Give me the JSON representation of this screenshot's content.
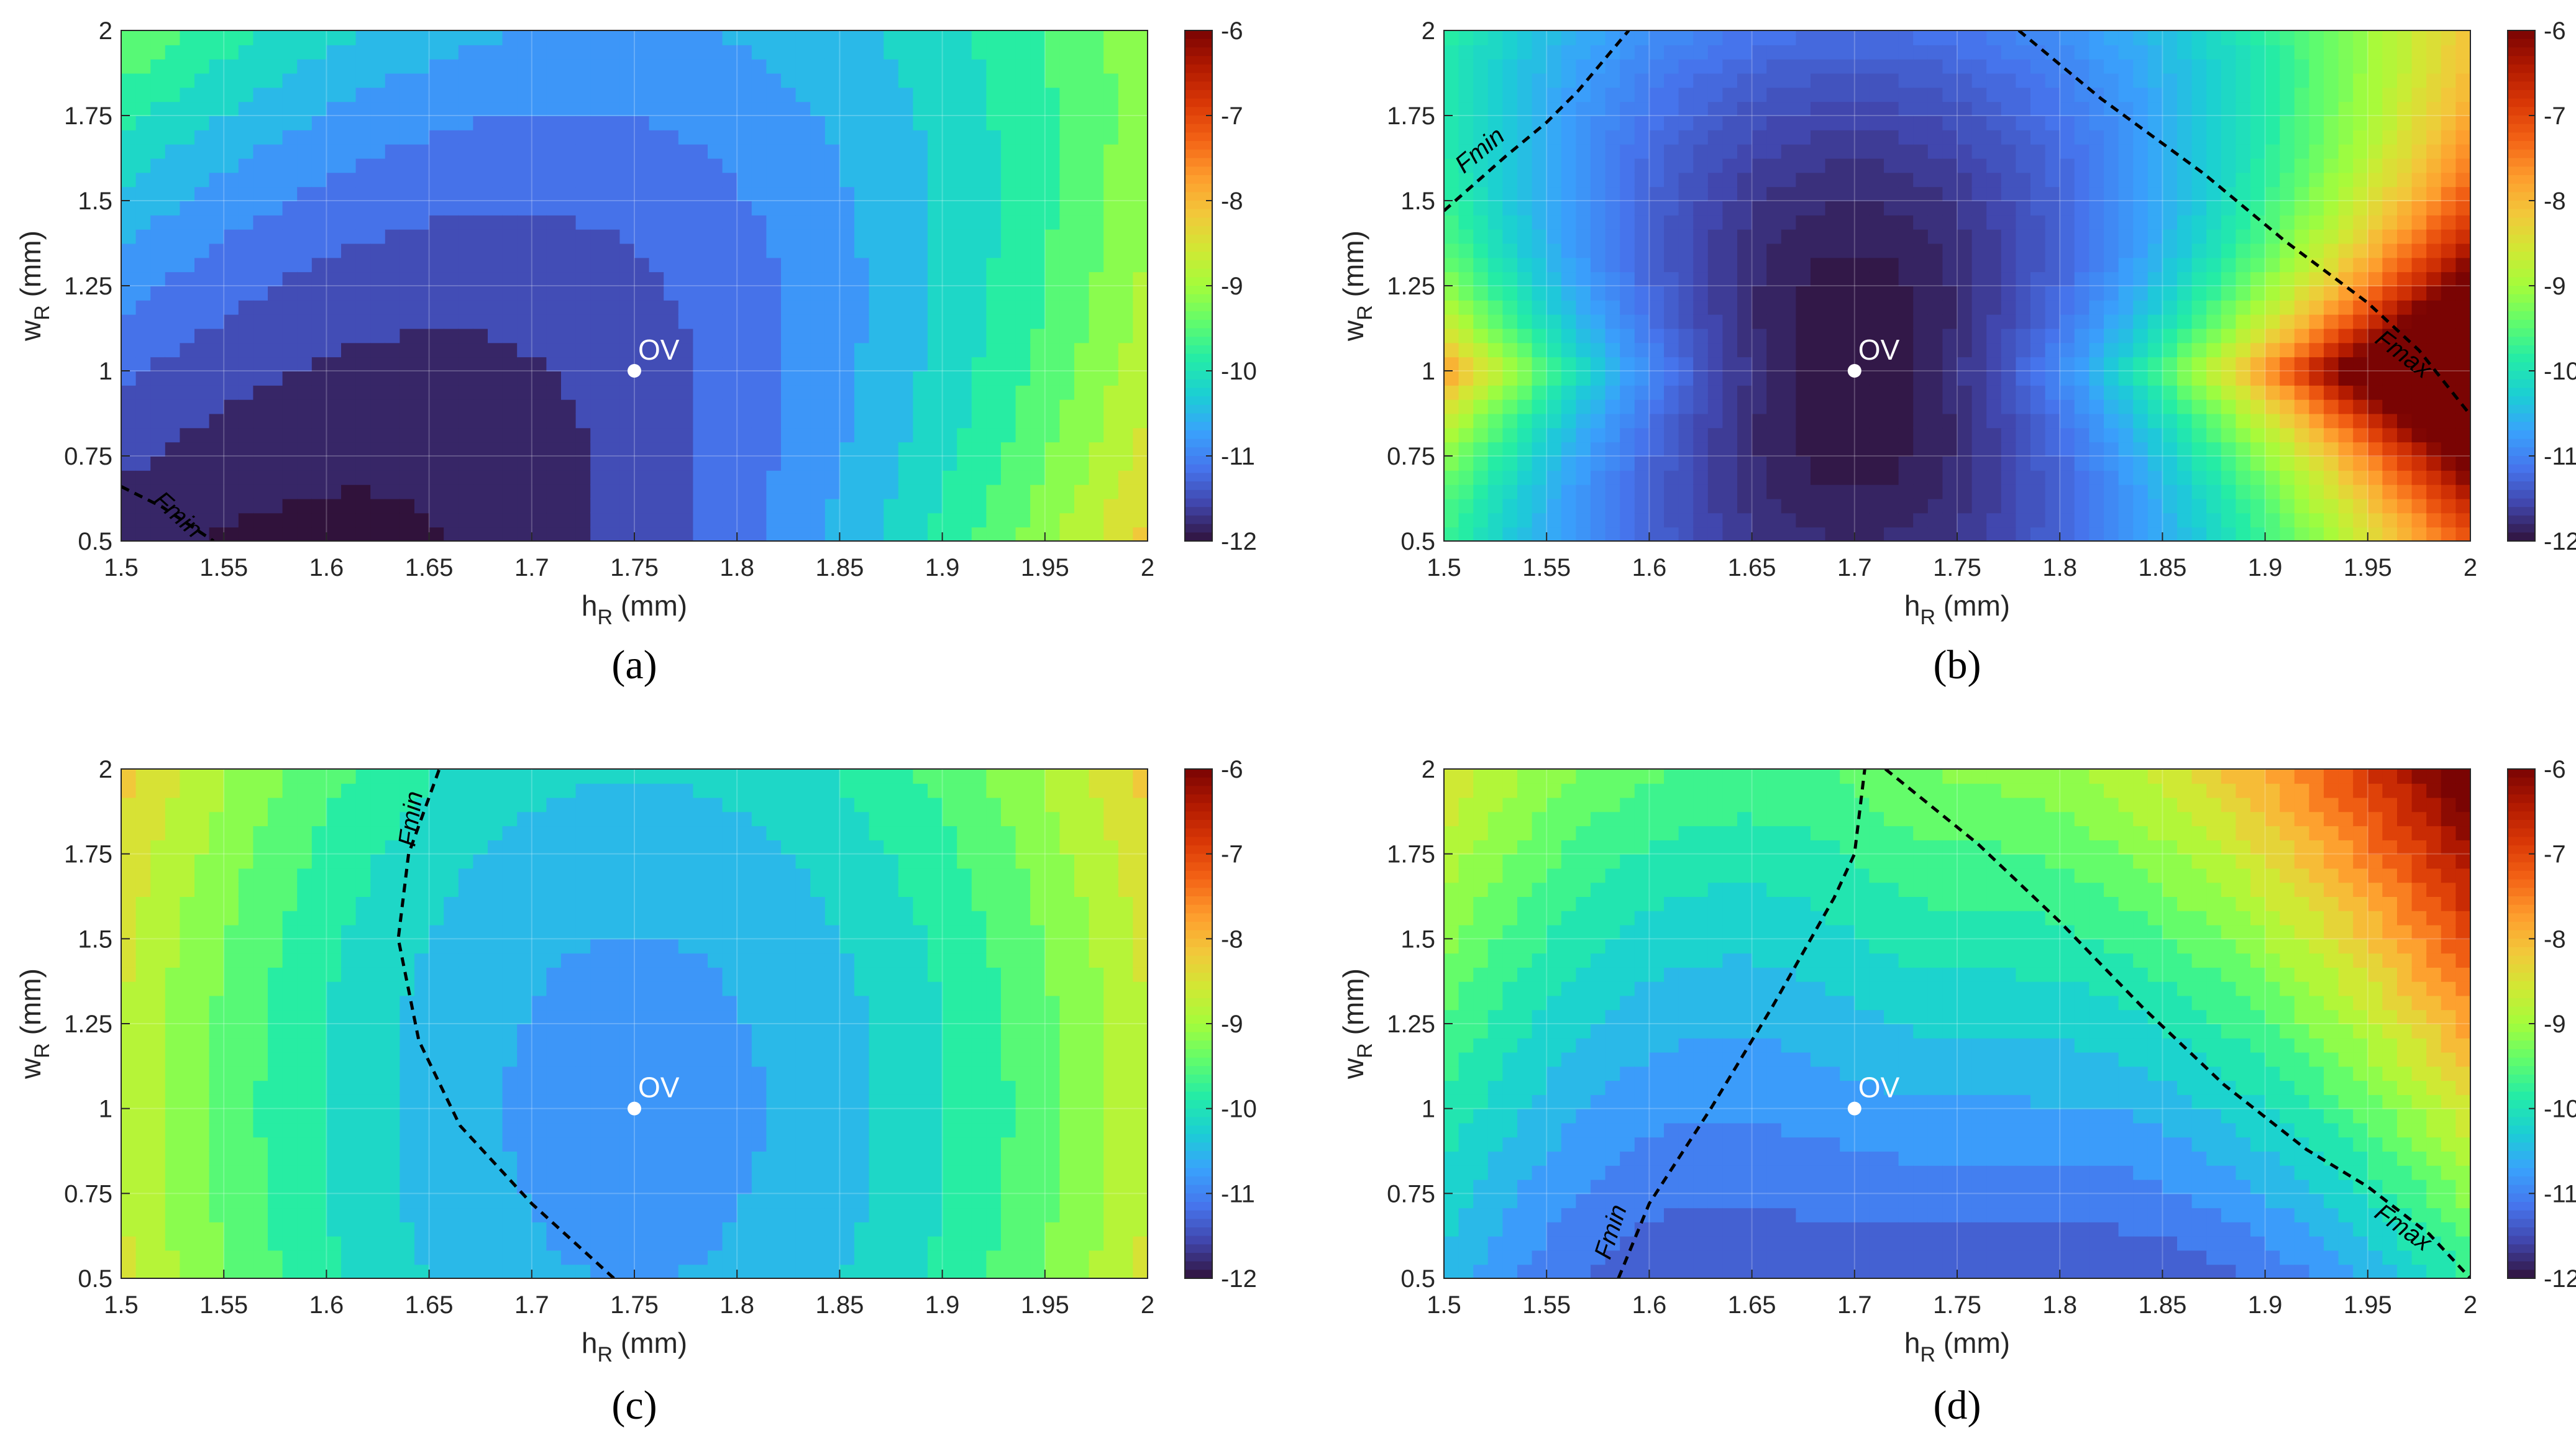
{
  "figure": {
    "colormap": [
      "#30123b",
      "#4145ab",
      "#4675ed",
      "#39a2fc",
      "#1bcfd4",
      "#24eca6",
      "#61fc6c",
      "#a4fc3b",
      "#d1e834",
      "#f3c63a",
      "#fe9b2d",
      "#f36315",
      "#d93806",
      "#b11901",
      "#7a0403"
    ],
    "line_style": "dashed"
  },
  "chart_data": [
    {
      "type": "heatmap",
      "panel": "(a)",
      "xlabel_main": "h",
      "xlabel_sub": "R",
      "xlabel_unit": " (mm)",
      "ylabel_main": "w",
      "ylabel_sub": "R",
      "ylabel_unit": " (mm)",
      "x_ticks": [
        "1.5",
        "1.55",
        "1.6",
        "1.65",
        "1.7",
        "1.75",
        "1.8",
        "1.85",
        "1.9",
        "1.95",
        "2"
      ],
      "y_ticks": [
        "0.5",
        "0.75",
        "1",
        "1.25",
        "1.5",
        "1.75",
        "2"
      ],
      "xlim": [
        1.5,
        2
      ],
      "ylim": [
        0.5,
        2
      ],
      "colorbar_ticks": [
        "-6",
        "-7",
        "-8",
        "-9",
        "-10",
        "-11",
        "-12"
      ],
      "clim": [
        -12,
        -6
      ],
      "contour_levels": 18,
      "field": {
        "x0": 1.75,
        "y0": 1.0,
        "zmin": -11.5,
        "ax": 24,
        "ay": 0.5,
        "bx": 5,
        "tilt": 0.3,
        "cross": -4.6
      },
      "optimum": {
        "label": "OV",
        "x": 1.75,
        "y": 1.0
      },
      "curves": [
        {
          "label": "Fmin",
          "points": [
            [
              1.5,
              0.66
            ],
            [
              1.52,
              0.6
            ],
            [
              1.545,
              0.5
            ]
          ],
          "label_at": [
            1.525,
            0.56
          ],
          "label_angle": 42
        }
      ]
    },
    {
      "type": "heatmap",
      "panel": "(b)",
      "xlabel_main": "h",
      "xlabel_sub": "R",
      "xlabel_unit": " (mm)",
      "ylabel_main": "w",
      "ylabel_sub": "R",
      "ylabel_unit": " (mm)",
      "x_ticks": [
        "1.5",
        "1.55",
        "1.6",
        "1.65",
        "1.7",
        "1.75",
        "1.8",
        "1.85",
        "1.9",
        "1.95",
        "2"
      ],
      "y_ticks": [
        "0.5",
        "0.75",
        "1",
        "1.25",
        "1.5",
        "1.75",
        "2"
      ],
      "xlim": [
        1.5,
        2
      ],
      "ylim": [
        0.5,
        2
      ],
      "colorbar_ticks": [
        "-6",
        "-7",
        "-8",
        "-9",
        "-10",
        "-11",
        "-12"
      ],
      "clim": [
        -12,
        -6
      ],
      "contour_levels": 60,
      "field": {
        "x0": 1.7,
        "y0": 1.0,
        "zmin": -12.0,
        "ax": 110,
        "ay": 0.8,
        "bx": 0,
        "tilt": 0,
        "cross": 0,
        "spread": 3.2
      },
      "optimum": {
        "label": "OV",
        "x": 1.7,
        "y": 1.0
      },
      "curves": [
        {
          "label": "Fmin",
          "points": [
            [
              1.5,
              1.47
            ],
            [
              1.53,
              1.63
            ],
            [
              1.55,
              1.73
            ],
            [
              1.565,
              1.82
            ],
            [
              1.59,
              2.0
            ]
          ],
          "label_at": [
            1.52,
            1.63
          ],
          "label_angle": -40
        },
        {
          "label": "Fmax",
          "points": [
            [
              1.78,
              2.0
            ],
            [
              1.82,
              1.8
            ],
            [
              1.87,
              1.58
            ],
            [
              1.91,
              1.38
            ],
            [
              1.95,
              1.2
            ],
            [
              1.975,
              1.06
            ],
            [
              2.0,
              0.87
            ]
          ],
          "label_at": [
            1.965,
            1.03
          ],
          "label_angle": 37
        }
      ]
    },
    {
      "type": "heatmap",
      "panel": "(c)",
      "xlabel_main": "h",
      "xlabel_sub": "R",
      "xlabel_unit": " (mm)",
      "ylabel_main": "w",
      "ylabel_sub": "R",
      "ylabel_unit": " (mm)",
      "x_ticks": [
        "1.5",
        "1.55",
        "1.6",
        "1.65",
        "1.7",
        "1.75",
        "1.8",
        "1.85",
        "1.9",
        "1.95",
        "2"
      ],
      "y_ticks": [
        "0.5",
        "0.75",
        "1",
        "1.25",
        "1.5",
        "1.75",
        "2"
      ],
      "xlim": [
        1.5,
        2
      ],
      "ylim": [
        0.5,
        2
      ],
      "colorbar_ticks": [
        "-6",
        "-7",
        "-8",
        "-9",
        "-10",
        "-11",
        "-12"
      ],
      "clim": [
        -12,
        -6
      ],
      "contour_levels": 18,
      "field": {
        "x0": 1.75,
        "y0": 1.0,
        "zmin": -10.8,
        "ax": 34,
        "ay": 0.5,
        "bx": 0,
        "tilt": 0,
        "cross": 0
      },
      "optimum": {
        "label": "OV",
        "x": 1.75,
        "y": 1.0
      },
      "curves": [
        {
          "label": "Fmin",
          "points": [
            [
              1.74,
              0.5
            ],
            [
              1.7,
              0.72
            ],
            [
              1.665,
              0.95
            ],
            [
              1.645,
              1.2
            ],
            [
              1.635,
              1.5
            ],
            [
              1.64,
              1.75
            ],
            [
              1.655,
              2.0
            ]
          ],
          "label_at": [
            1.645,
            1.85
          ],
          "label_angle": -82
        }
      ]
    },
    {
      "type": "heatmap",
      "panel": "(d)",
      "xlabel_main": "h",
      "xlabel_sub": "R",
      "xlabel_unit": " (mm)",
      "ylabel_main": "w",
      "ylabel_sub": "R",
      "ylabel_unit": " (mm)",
      "x_ticks": [
        "1.5",
        "1.55",
        "1.6",
        "1.65",
        "1.7",
        "1.75",
        "1.8",
        "1.85",
        "1.9",
        "1.95",
        "2"
      ],
      "y_ticks": [
        "0.5",
        "0.75",
        "1",
        "1.25",
        "1.5",
        "1.75",
        "2"
      ],
      "xlim": [
        1.5,
        2
      ],
      "ylim": [
        0.5,
        2
      ],
      "colorbar_ticks": [
        "-6",
        "-7",
        "-8",
        "-9",
        "-10",
        "-11",
        "-12"
      ],
      "clim": [
        -12,
        -6
      ],
      "contour_levels": 22,
      "field": {
        "x0": 1.73,
        "y0": 0.55,
        "zmin": -11.4,
        "ax": 55,
        "ay": 0.0,
        "bx": 0,
        "tilt": 0,
        "cross": 0,
        "spread": 1.5,
        "ridge": 6.5
      },
      "optimum": {
        "label": "OV",
        "x": 1.7,
        "y": 1.0
      },
      "curves": [
        {
          "label": "Fmin",
          "points": [
            [
              1.585,
              0.5
            ],
            [
              1.6,
              0.72
            ],
            [
              1.63,
              1.0
            ],
            [
              1.66,
              1.3
            ],
            [
              1.69,
              1.62
            ],
            [
              1.7,
              1.75
            ],
            [
              1.705,
              2.0
            ]
          ],
          "label_at": [
            1.585,
            0.63
          ],
          "label_angle": -72
        },
        {
          "label": "Fmax",
          "points": [
            [
              1.715,
              2.0
            ],
            [
              1.76,
              1.78
            ],
            [
              1.8,
              1.55
            ],
            [
              1.84,
              1.3
            ],
            [
              1.88,
              1.07
            ],
            [
              1.92,
              0.88
            ],
            [
              1.95,
              0.77
            ],
            [
              1.98,
              0.63
            ],
            [
              2.0,
              0.5
            ]
          ],
          "label_at": [
            1.965,
            0.63
          ],
          "label_angle": 35
        }
      ]
    }
  ]
}
